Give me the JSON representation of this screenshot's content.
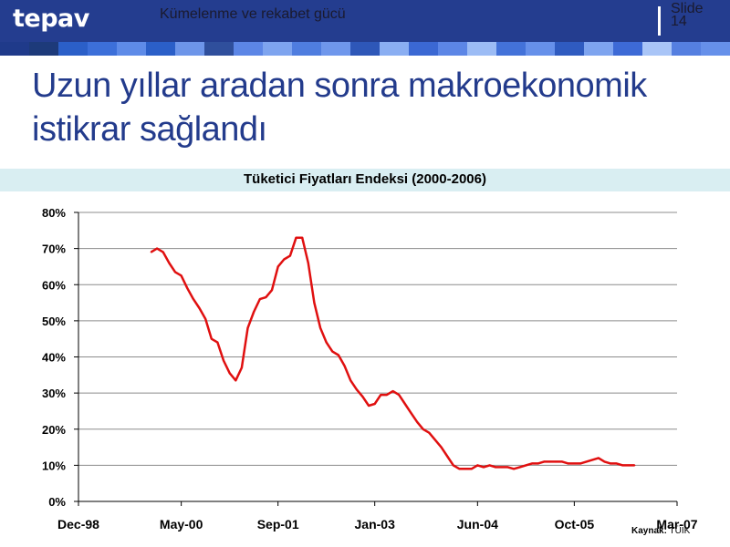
{
  "header": {
    "logo": "tepav",
    "subtitle": "Kümelenme ve rekabet gücü",
    "slide_label": "Slide",
    "slide_number": "14",
    "tile_colors": [
      "#1f3a8a",
      "#1d3a7a",
      "#2b5fc8",
      "#3c6fd9",
      "#5e8be8",
      "#2b5fc8",
      "#6d95e9",
      "#2f4f9c",
      "#5c86e6",
      "#7ea4ef",
      "#4f7ddf",
      "#6f97ec",
      "#2e57b8",
      "#8aaef2",
      "#3b68d3",
      "#5c86e6",
      "#9cbcf5",
      "#4372d9",
      "#6690ea",
      "#2f5bc0",
      "#7ea4ef",
      "#3d6ad6",
      "#a9c5f7",
      "#557fe0",
      "#6690ea"
    ]
  },
  "slide_title": "Uzun yıllar aradan sonra makroekonomik istikrar sağlandı",
  "source": {
    "label": "Kaynak:",
    "value": "TÜİK"
  },
  "chart_data": {
    "type": "line",
    "title": "Tüketici Fiyatları Endeksi (2000-2006)",
    "xlabel": "",
    "ylabel": "",
    "x_ticks": [
      "Dec-98",
      "May-00",
      "Sep-01",
      "Jan-03",
      "Jun-04",
      "Oct-05",
      "Mar-07"
    ],
    "y_ticks": [
      "0%",
      "10%",
      "20%",
      "30%",
      "40%",
      "50%",
      "60%",
      "70%",
      "80%"
    ],
    "ylim": [
      0,
      80
    ],
    "grid": true,
    "series": [
      {
        "color": "#e01010",
        "points": [
          [
            "1999-12",
            69
          ],
          [
            "2000-01",
            70
          ],
          [
            "2000-02",
            69
          ],
          [
            "2000-03",
            66
          ],
          [
            "2000-04",
            63.5
          ],
          [
            "2000-05",
            62.5
          ],
          [
            "2000-06",
            59
          ],
          [
            "2000-07",
            56
          ],
          [
            "2000-08",
            53.5
          ],
          [
            "2000-09",
            50.5
          ],
          [
            "2000-10",
            45
          ],
          [
            "2000-11",
            44
          ],
          [
            "2000-12",
            39
          ],
          [
            "2001-01",
            35.5
          ],
          [
            "2001-02",
            33.5
          ],
          [
            "2001-03",
            37
          ],
          [
            "2001-04",
            48
          ],
          [
            "2001-05",
            52.5
          ],
          [
            "2001-06",
            56
          ],
          [
            "2001-07",
            56.5
          ],
          [
            "2001-08",
            58.5
          ],
          [
            "2001-09",
            65
          ],
          [
            "2001-10",
            67
          ],
          [
            "2001-11",
            68
          ],
          [
            "2001-12",
            73
          ],
          [
            "2002-01",
            73
          ],
          [
            "2002-02",
            66
          ],
          [
            "2002-03",
            55
          ],
          [
            "2002-04",
            48
          ],
          [
            "2002-05",
            44
          ],
          [
            "2002-06",
            41.5
          ],
          [
            "2002-07",
            40.5
          ],
          [
            "2002-08",
            37.5
          ],
          [
            "2002-09",
            33.5
          ],
          [
            "2002-10",
            31
          ],
          [
            "2002-11",
            29
          ],
          [
            "2002-12",
            26.5
          ],
          [
            "2003-01",
            27
          ],
          [
            "2003-02",
            29.5
          ],
          [
            "2003-03",
            29.5
          ],
          [
            "2003-04",
            30.5
          ],
          [
            "2003-05",
            29.5
          ],
          [
            "2003-06",
            27
          ],
          [
            "2003-07",
            24.5
          ],
          [
            "2003-08",
            22
          ],
          [
            "2003-09",
            20
          ],
          [
            "2003-10",
            19
          ],
          [
            "2003-11",
            17
          ],
          [
            "2003-12",
            15
          ],
          [
            "2004-01",
            12.5
          ],
          [
            "2004-02",
            10
          ],
          [
            "2004-03",
            9
          ],
          [
            "2004-04",
            9
          ],
          [
            "2004-05",
            9
          ],
          [
            "2004-06",
            10
          ],
          [
            "2004-07",
            9.5
          ],
          [
            "2004-08",
            10
          ],
          [
            "2004-09",
            9.5
          ],
          [
            "2004-10",
            9.5
          ],
          [
            "2004-11",
            9.5
          ],
          [
            "2004-12",
            9
          ],
          [
            "2005-01",
            9.5
          ],
          [
            "2005-02",
            10
          ],
          [
            "2005-03",
            10.5
          ],
          [
            "2005-04",
            10.5
          ],
          [
            "2005-05",
            11
          ],
          [
            "2005-06",
            11
          ],
          [
            "2005-07",
            11
          ],
          [
            "2005-08",
            11
          ],
          [
            "2005-09",
            10.5
          ],
          [
            "2005-10",
            10.5
          ],
          [
            "2005-11",
            10.5
          ],
          [
            "2005-12",
            11
          ],
          [
            "2006-01",
            11.5
          ],
          [
            "2006-02",
            12
          ],
          [
            "2006-03",
            11
          ],
          [
            "2006-04",
            10.5
          ],
          [
            "2006-05",
            10.5
          ],
          [
            "2006-06",
            10
          ],
          [
            "2006-07",
            10
          ],
          [
            "2006-08",
            10
          ]
        ]
      }
    ]
  }
}
